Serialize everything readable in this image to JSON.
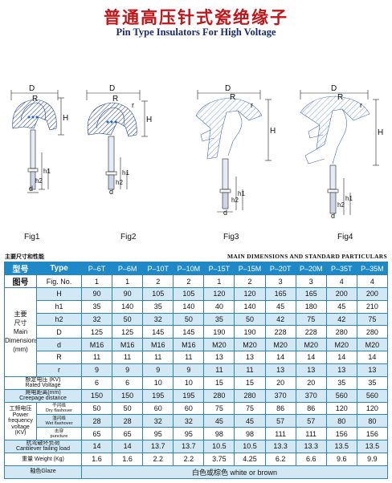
{
  "title_cn": "普通高压针式瓷绝缘子",
  "title_en": "Pin Type Insulators For High Voltage",
  "figures": {
    "labels": [
      "Fig1",
      "Fig2",
      "Fig3",
      "Fig4"
    ],
    "dim_labels": [
      "D",
      "R",
      "H",
      "h1",
      "h2",
      "d",
      "r"
    ]
  },
  "table_titles": {
    "cn": "主要尺寸和性能",
    "en": "MAIN DIMENSIONS AND STANDARD PARTICULARS"
  },
  "colors": {
    "header_blue": "#1e89c9",
    "light_blue": "#d3e8f5",
    "title_red": "#c0161a",
    "title_navy": "#1b2a6e"
  },
  "table": {
    "type_cn": "型号",
    "type_en": "Type",
    "models": [
      "P–6T",
      "P–6M",
      "P–10T",
      "P–10M",
      "P–15T",
      "P–15M",
      "P–20T",
      "P–20M",
      "P–35T",
      "P–35M"
    ],
    "fig_cn": "图号",
    "fig_en": "Fig. No.",
    "fig_no": [
      "1",
      "1",
      "2",
      "2",
      "1",
      "2",
      "3",
      "3",
      "4",
      "4"
    ],
    "dims_cn_1": "主要",
    "dims_cn_2": "尺寸",
    "dims_en_1": "Main",
    "dims_en_2": "Dimensions",
    "dims_unit": "(mm)",
    "dims": [
      {
        "sym": "H",
        "values": [
          "90",
          "90",
          "105",
          "105",
          "120",
          "120",
          "165",
          "165",
          "200",
          "200"
        ]
      },
      {
        "sym": "h1",
        "values": [
          "35",
          "140",
          "35",
          "140",
          "40",
          "140",
          "45",
          "180",
          "45",
          "210"
        ]
      },
      {
        "sym": "h2",
        "values": [
          "32",
          "50",
          "32",
          "50",
          "35",
          "50",
          "42",
          "75",
          "42",
          "75"
        ]
      },
      {
        "sym": "D",
        "values": [
          "125",
          "125",
          "145",
          "145",
          "190",
          "190",
          "228",
          "228",
          "280",
          "280"
        ]
      },
      {
        "sym": "d",
        "values": [
          "M16",
          "M16",
          "M16",
          "M16",
          "M20",
          "M20",
          "M20",
          "M20",
          "M20",
          "M20"
        ]
      },
      {
        "sym": "R",
        "values": [
          "11",
          "11",
          "11",
          "11",
          "13",
          "13",
          "14",
          "14",
          "14",
          "14"
        ]
      },
      {
        "sym": "r",
        "values": [
          "9",
          "9",
          "9",
          "9",
          "11",
          "11",
          "13",
          "13",
          "13",
          "13"
        ]
      }
    ],
    "rated_cn": "额定电压 (KV)",
    "rated_en": "Rated Voltage",
    "rated": [
      "6",
      "6",
      "10",
      "10",
      "15",
      "15",
      "20",
      "20",
      "35",
      "35"
    ],
    "creep_cn": "爬电距离(mm)",
    "creep_en": "Creepage distance",
    "creep": [
      "150",
      "150",
      "195",
      "195",
      "280",
      "280",
      "370",
      "370",
      "560",
      "560"
    ],
    "pf_cn": "工频电压",
    "pf_en_1": "Power",
    "pf_en_2": "frequency",
    "pf_en_3": "voltage",
    "pf_en_4": "(KV)",
    "dry_cn": "干闪络",
    "dry_en": "Dry flashover",
    "dry": [
      "50",
      "50",
      "60",
      "60",
      "75",
      "75",
      "86",
      "86",
      "120",
      "120"
    ],
    "wet_cn": "湿闪络",
    "wet_en": "Wet flashover",
    "wet": [
      "28",
      "28",
      "32",
      "32",
      "45",
      "45",
      "57",
      "57",
      "80",
      "80"
    ],
    "punct_cn": "击穿",
    "punct_en": "puncture",
    "punct": [
      "65",
      "65",
      "95",
      "95",
      "98",
      "98",
      "111",
      "111",
      "156",
      "156"
    ],
    "cant_cn": "抗弯破坏负荷",
    "cant_en": "Cantilever failing load",
    "cant": [
      "14",
      "14",
      "13.7",
      "13.7",
      "10.5",
      "10.5",
      "13.3",
      "13.3",
      "13.5",
      "13.5"
    ],
    "weight_label": "重量 Weight (Kg)",
    "weight": [
      "1.6",
      "1.6",
      "2.2",
      "2.2",
      "3.75",
      "4.25",
      "6.2",
      "6.6",
      "9.6",
      "9.9"
    ],
    "glaze_label": "釉色Glaze",
    "glaze_value": "白色或棕色 white or brown"
  }
}
